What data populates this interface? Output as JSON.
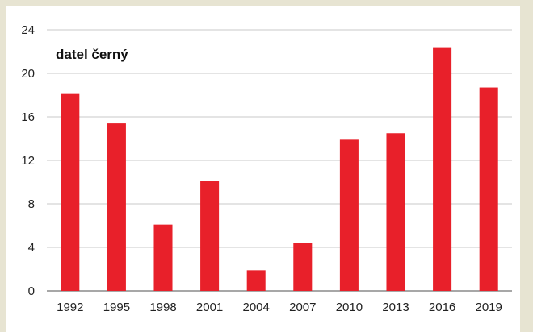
{
  "chart_data": {
    "type": "bar",
    "title": "datel černý",
    "xlabel": "",
    "ylabel": "",
    "categories": [
      "1992",
      "1995",
      "1998",
      "2001",
      "2004",
      "2007",
      "2010",
      "2013",
      "2016",
      "2019"
    ],
    "values": [
      18.1,
      15.4,
      6.1,
      10.1,
      1.9,
      4.4,
      13.9,
      14.5,
      22.4,
      18.7
    ],
    "ylim": [
      0,
      24
    ],
    "yticks": [
      "0",
      "4",
      "8",
      "12",
      "16",
      "20",
      "24"
    ],
    "grid": true,
    "legend": "none",
    "bar_color": "#e8202a",
    "background_color": "#e7e4d2"
  }
}
